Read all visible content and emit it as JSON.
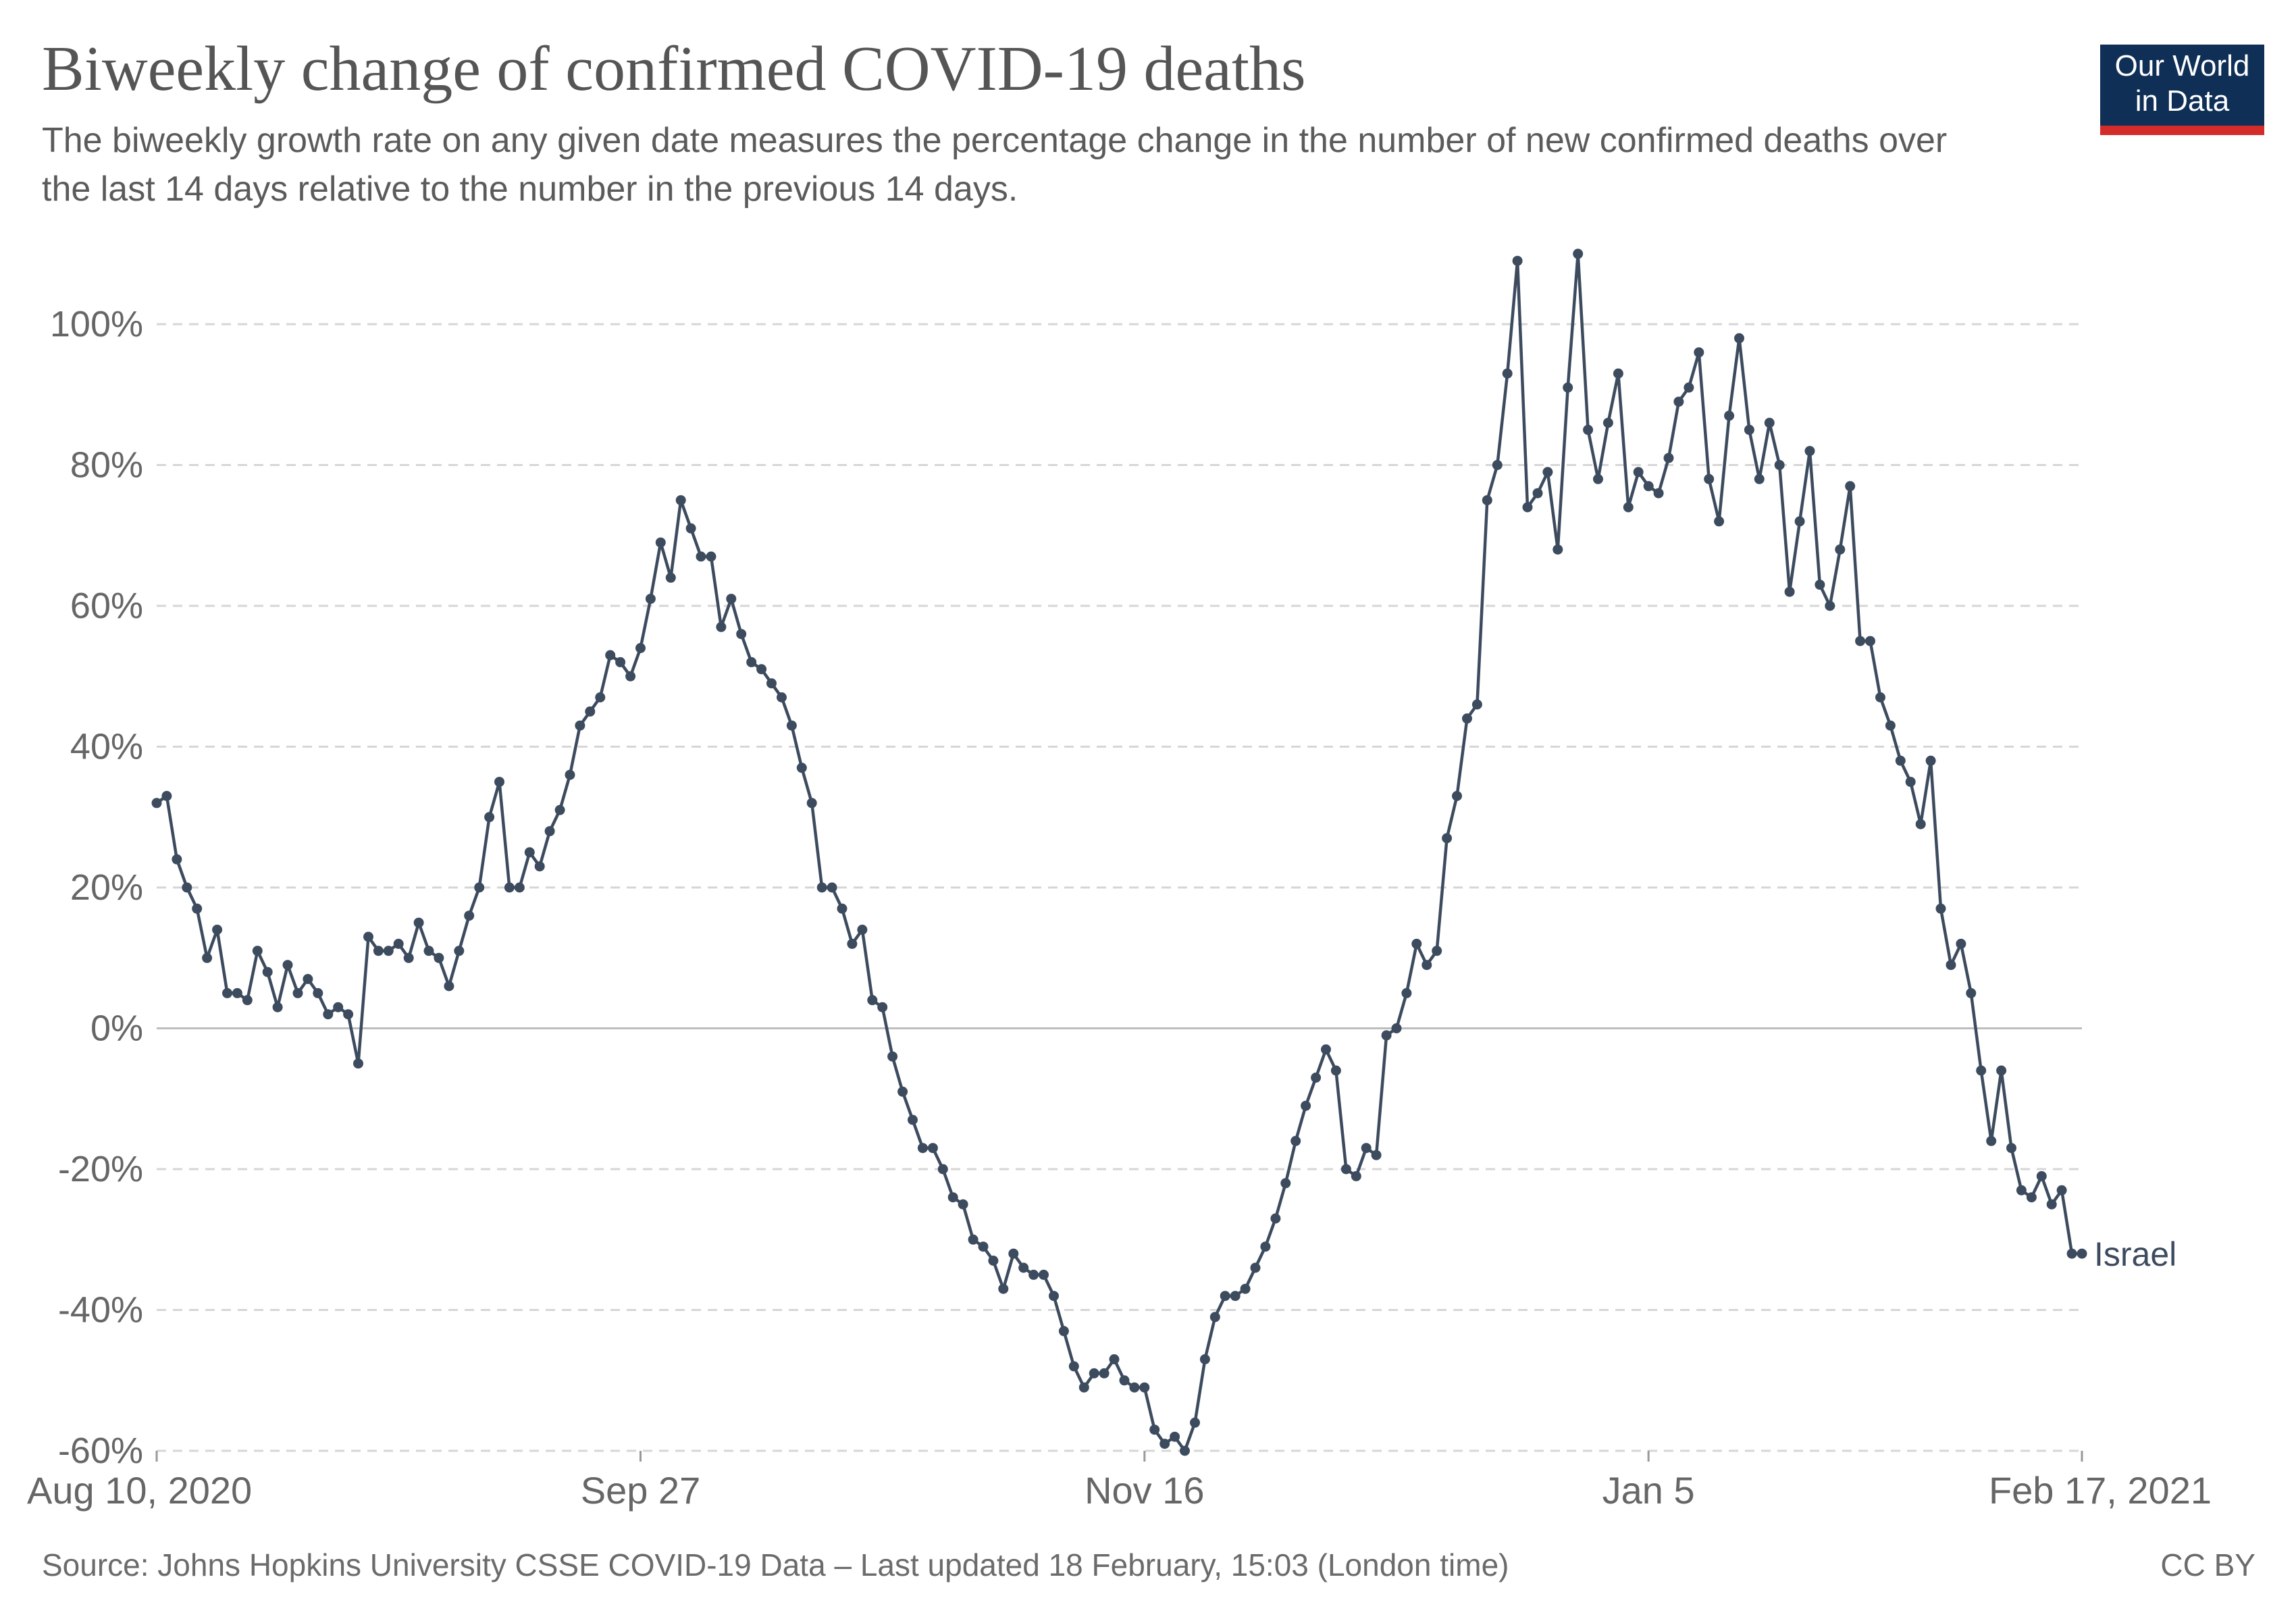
{
  "header": {
    "title": "Biweekly change of confirmed COVID-19 deaths",
    "subtitle": "The biweekly growth rate on any given date measures the percentage change in the number of new confirmed deaths over the last 14 days relative to the number in the previous 14 days."
  },
  "logo": {
    "line1": "Our World",
    "line2": "in Data",
    "bg_color": "#0f2f57",
    "bar_color": "#d42b2b"
  },
  "footer": {
    "source": "Source: Johns Hopkins University CSSE COVID-19 Data – Last updated 18 February, 15:03 (London time)",
    "license": "CC BY"
  },
  "chart_data": {
    "type": "line",
    "title": "Biweekly change of confirmed COVID-19 deaths",
    "xlabel": "",
    "ylabel": "",
    "ylim": [
      -60,
      110
    ],
    "y_ticks": [
      -60,
      -40,
      -20,
      0,
      20,
      40,
      60,
      80,
      100
    ],
    "y_tick_labels": [
      "-60%",
      "-40%",
      "-20%",
      "0%",
      "20%",
      "40%",
      "60%",
      "80%",
      "100%"
    ],
    "x_range_days": [
      0,
      191
    ],
    "x_ticks": [
      {
        "day": 0,
        "label": "Aug 10, 2020"
      },
      {
        "day": 48,
        "label": "Sep 27"
      },
      {
        "day": 98,
        "label": "Nov 16"
      },
      {
        "day": 148,
        "label": "Jan 5"
      },
      {
        "day": 191,
        "label": "Feb 17, 2021"
      }
    ],
    "grid": true,
    "line_color": "#3d4b5f",
    "series": [
      {
        "name": "Israel",
        "start_date": "2020-08-10",
        "values": [
          32,
          33,
          24,
          20,
          17,
          10,
          14,
          5,
          5,
          4,
          11,
          8,
          3,
          9,
          5,
          7,
          5,
          2,
          3,
          2,
          -5,
          13,
          11,
          11,
          12,
          10,
          15,
          11,
          10,
          6,
          11,
          16,
          20,
          30,
          35,
          20,
          20,
          25,
          23,
          28,
          31,
          36,
          43,
          45,
          47,
          53,
          52,
          50,
          54,
          61,
          69,
          64,
          75,
          71,
          67,
          67,
          57,
          61,
          56,
          52,
          51,
          49,
          47,
          43,
          37,
          32,
          20,
          20,
          17,
          12,
          14,
          4,
          3,
          -4,
          -9,
          -13,
          -17,
          -17,
          -20,
          -24,
          -25,
          -30,
          -31,
          -33,
          -37,
          -32,
          -34,
          -35,
          -35,
          -38,
          -43,
          -48,
          -51,
          -49,
          -49,
          -47,
          -50,
          -51,
          -51,
          -57,
          -59,
          -58,
          -60,
          -56,
          -47,
          -41,
          -38,
          -38,
          -37,
          -34,
          -31,
          -27,
          -22,
          -16,
          -11,
          -7,
          -3,
          -6,
          -20,
          -21,
          -17,
          -18,
          -1,
          0,
          5,
          12,
          9,
          11,
          27,
          33,
          44,
          46,
          75,
          80,
          93,
          109,
          74,
          76,
          79,
          68,
          91,
          110,
          85,
          78,
          86,
          93,
          74,
          79,
          77,
          76,
          81,
          89,
          91,
          96,
          78,
          72,
          87,
          98,
          85,
          78,
          86,
          80,
          62,
          72,
          82,
          63,
          60,
          68,
          77,
          55,
          55,
          47,
          43,
          38,
          35,
          29,
          38,
          17,
          9,
          12,
          5,
          -6,
          -16,
          -6,
          -17,
          -23,
          -24,
          -21,
          -25,
          -23,
          -32,
          -32
        ]
      }
    ]
  }
}
